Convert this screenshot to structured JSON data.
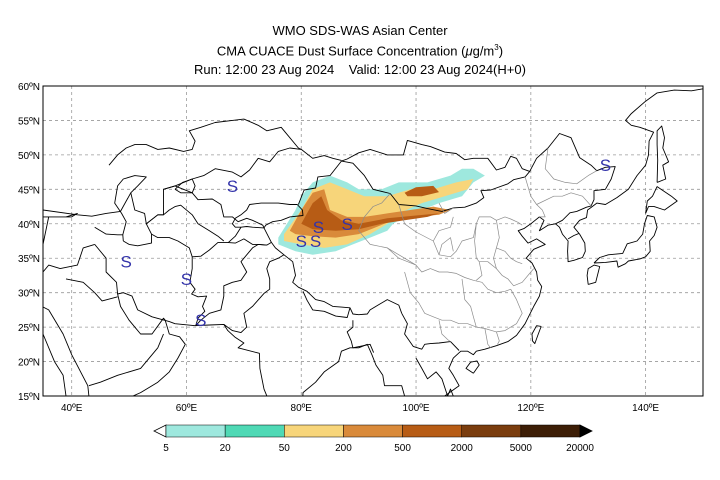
{
  "header": {
    "center": "WMO SDS-WAS Asian Center",
    "product_prefix": "CMA CUACE Dust Surface Concentration (",
    "product_unit_mu": "μ",
    "product_unit_g": "g/m",
    "product_unit_exp": "3",
    "product_suffix": ")",
    "run": "Run: 12:00 23 Aug 2024",
    "valid": "Valid: 12:00 23 Aug 2024(H+0)"
  },
  "map": {
    "lat_labels": [
      "60ºN",
      "55ºN",
      "50ºN",
      "45ºN",
      "40ºN",
      "35ºN",
      "30ºN",
      "25ºN",
      "20ºN",
      "15ºN"
    ],
    "lon_labels": [
      "40ºE",
      "60ºE",
      "80ºE",
      "100ºE",
      "120ºE",
      "140ºE"
    ],
    "markers": [
      "S",
      "S",
      "S",
      "S",
      "S",
      "S",
      "S",
      "S",
      "S"
    ],
    "marker_color": "#3333aa"
  },
  "colorbar": {
    "labels": [
      "5",
      "20",
      "50",
      "200",
      "500",
      "2000",
      "5000",
      "20000"
    ],
    "colors": [
      "#9ee8de",
      "#4fd9b5",
      "#f7d57a",
      "#d98a3a",
      "#b75c15",
      "#7a3d0e",
      "#3d1e06"
    ]
  },
  "chart_data": {
    "type": "heatmap",
    "title": "WMO SDS-WAS Asian Center",
    "subtitle": "CMA CUACE Dust Surface Concentration (μg/m3)",
    "run": "Run: 12:00 23 Aug 2024",
    "valid": "Valid: 12:00 23 Aug 2024(H+0)",
    "xlim": [
      35,
      150
    ],
    "ylim": [
      15,
      60
    ],
    "x_ticks": [
      40,
      60,
      80,
      100,
      120,
      140
    ],
    "y_ticks": [
      15,
      20,
      25,
      30,
      35,
      40,
      45,
      50,
      55,
      60
    ],
    "levels": [
      5,
      20,
      50,
      200,
      500,
      2000,
      5000,
      20000
    ],
    "dust_regions": [
      {
        "level_min": 5,
        "polygon": [
          [
            76,
            38
          ],
          [
            79,
            42
          ],
          [
            80,
            44
          ],
          [
            82,
            46
          ],
          [
            85,
            47
          ],
          [
            88,
            46
          ],
          [
            90,
            45
          ],
          [
            94,
            45
          ],
          [
            97,
            46
          ],
          [
            102,
            46
          ],
          [
            106,
            47
          ],
          [
            108,
            48
          ],
          [
            110,
            48
          ],
          [
            112,
            47
          ],
          [
            110,
            46
          ],
          [
            108,
            44
          ],
          [
            104,
            43
          ],
          [
            101,
            42
          ],
          [
            98,
            41
          ],
          [
            96,
            40
          ],
          [
            95,
            39
          ],
          [
            92,
            38
          ],
          [
            89,
            37
          ],
          [
            86,
            36
          ],
          [
            82,
            35.5
          ],
          [
            79,
            36
          ],
          [
            76,
            37
          ]
        ]
      },
      {
        "level_min": 50,
        "polygon": [
          [
            77,
            38.5
          ],
          [
            80,
            42
          ],
          [
            82,
            45
          ],
          [
            85,
            46
          ],
          [
            88,
            45
          ],
          [
            91,
            44
          ],
          [
            95,
            44
          ],
          [
            99,
            45
          ],
          [
            103,
            45
          ],
          [
            107,
            46
          ],
          [
            110,
            46.5
          ],
          [
            109,
            45
          ],
          [
            105,
            44
          ],
          [
            101,
            43
          ],
          [
            97,
            41.5
          ],
          [
            95,
            40
          ],
          [
            92,
            38.5
          ],
          [
            88,
            37
          ],
          [
            84,
            36.5
          ],
          [
            80,
            37
          ],
          [
            77,
            37.5
          ]
        ]
      },
      {
        "level_min": 200,
        "polygon": [
          [
            78,
            39
          ],
          [
            80,
            42
          ],
          [
            82,
            44.5
          ],
          [
            84,
            45
          ],
          [
            85,
            42
          ],
          [
            88,
            41
          ],
          [
            91,
            41
          ],
          [
            95,
            41.5
          ],
          [
            99,
            42
          ],
          [
            103,
            42.5
          ],
          [
            106,
            42
          ],
          [
            104,
            41.3
          ],
          [
            100,
            41
          ],
          [
            96,
            40.5
          ],
          [
            93,
            39.5
          ],
          [
            90,
            38.5
          ],
          [
            86,
            38
          ],
          [
            82,
            38.2
          ],
          [
            79,
            38.5
          ]
        ]
      },
      {
        "level_min": 500,
        "polygon": [
          [
            80,
            40
          ],
          [
            82,
            43
          ],
          [
            83.5,
            44
          ],
          [
            84.5,
            42
          ],
          [
            87,
            40.5
          ],
          [
            90,
            40
          ],
          [
            95,
            40.8
          ],
          [
            100,
            41.2
          ],
          [
            104,
            41.5
          ],
          [
            102,
            41
          ],
          [
            98,
            40.5
          ],
          [
            94,
            40
          ],
          [
            90,
            39.2
          ],
          [
            86,
            39
          ],
          [
            82,
            39.2
          ]
        ]
      },
      {
        "level_min": 500,
        "polygon": [
          [
            98,
            44.5
          ],
          [
            100,
            45.3
          ],
          [
            103,
            45.5
          ],
          [
            104,
            44.6
          ],
          [
            101,
            44
          ],
          [
            98.5,
            44
          ]
        ]
      }
    ],
    "dust_markers": [
      {
        "lon": 49.5,
        "lat": 34.5
      },
      {
        "lon": 68,
        "lat": 45.5
      },
      {
        "lon": 60,
        "lat": 32
      },
      {
        "lon": 62.5,
        "lat": 26
      },
      {
        "lon": 80,
        "lat": 37.5
      },
      {
        "lon": 82.5,
        "lat": 37.5
      },
      {
        "lon": 83,
        "lat": 39.5
      },
      {
        "lon": 88,
        "lat": 40
      },
      {
        "lon": 133,
        "lat": 48.5
      }
    ]
  }
}
